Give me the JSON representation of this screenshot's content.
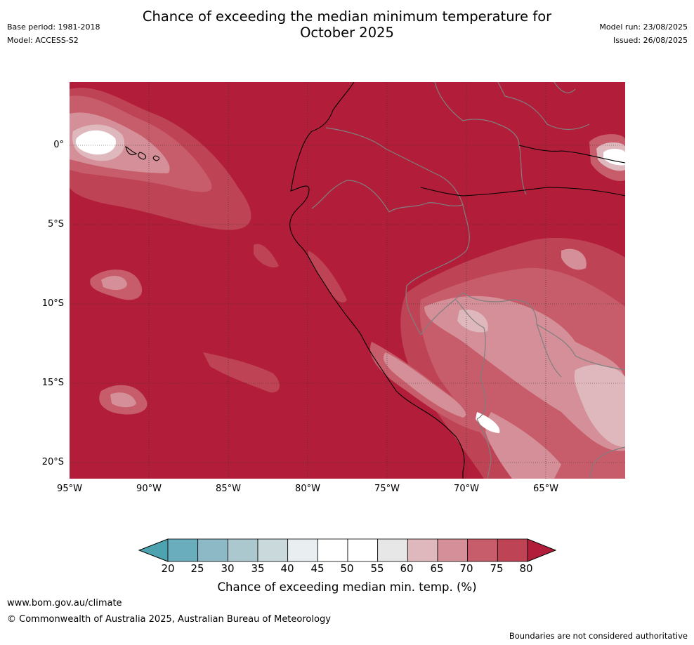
{
  "header": {
    "title_line1": "Chance of exceeding the median minimum temperature for",
    "title_line2": "October 2025",
    "base_period": "Base period: 1981-2018",
    "model": "Model: ACCESS-S2",
    "model_run": "Model run: 23/08/2025",
    "issued": "Issued: 26/08/2025"
  },
  "map": {
    "lat_labels": [
      "0°",
      "5°S",
      "10°S",
      "15°S",
      "20°S"
    ],
    "lon_labels": [
      "95°W",
      "90°W",
      "85°W",
      "80°W",
      "75°W",
      "70°W",
      "65°W"
    ],
    "colors": {
      "ocean_above_80": "#b21e39",
      "p75_80": "#be4354",
      "p70_75": "#c75d6b",
      "p65_70": "#d48f98",
      "p60_65": "#dfb8be",
      "p55_60": "#e7e7e8",
      "p45_55": "#ffffff",
      "coast": "#000000",
      "border": "#7f7f7f"
    }
  },
  "colorbar": {
    "ticks": [
      "20",
      "25",
      "30",
      "35",
      "40",
      "45",
      "50",
      "55",
      "60",
      "65",
      "70",
      "75",
      "80"
    ],
    "label": "Chance of exceeding median min. temp. (%)",
    "segment_colors": [
      "#6aadbc",
      "#8cb9c5",
      "#aac8ce",
      "#cad9dc",
      "#e9eff1",
      "#ffffff",
      "#ffffff",
      "#e7e7e8",
      "#dfb8be",
      "#d48f98",
      "#c75d6b",
      "#be4354"
    ],
    "low_arrow_color": "#4ea3b1",
    "high_arrow_color": "#b21e39"
  },
  "footer": {
    "website": "www.bom.gov.au/climate",
    "copyright": "© Commonwealth of Australia 2025, Australian Bureau of Meteorology",
    "disclaimer": "Boundaries are not considered authoritative"
  }
}
